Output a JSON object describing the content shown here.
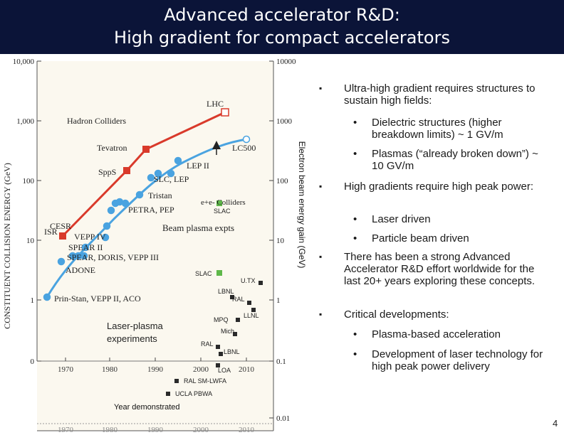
{
  "header": {
    "title_line1": "Advanced accelerator R&D:",
    "title_line2": "High gradient for compact accelerators",
    "background": "#0b1438",
    "text_color": "#ffffff"
  },
  "figure": {
    "left_axis_label": "CONSTITUENT COLLISION ENERGY (GeV)",
    "right_axis_label": "Electron beam energy gain (GeV)",
    "bottom_axis_label": "Year demonstrated",
    "left_ticks": [
      "10,000",
      "1,000",
      "100",
      "10",
      "1",
      "0"
    ],
    "right_ticks": [
      "10000",
      "1000",
      "100",
      "10",
      "1",
      "0.1",
      "0.01"
    ],
    "x_ticks": [
      "1970",
      "1980",
      "1990",
      "2000",
      "2010"
    ],
    "hadron_label": "Hadron Colliders",
    "lepton_label": "e+e- Colliders",
    "beam_plasma_label": "Beam plasma expts",
    "laser_plasma_label": "Laser-plasma\nexperiments",
    "hadron_points": [
      {
        "label": "ISR"
      },
      {
        "label": "SppS"
      },
      {
        "label": "Tevatron"
      },
      {
        "label": "LHC"
      }
    ],
    "lepton_points": [
      {
        "label": "Prin-Stan, VEPP II, ACO"
      },
      {
        "label": "ADONE"
      },
      {
        "label": "SPEAR, DORIS, VEPP III"
      },
      {
        "label": "SPEAR II"
      },
      {
        "label": "VEPP IV"
      },
      {
        "label": "CESR"
      },
      {
        "label": "PETRA, PEP"
      },
      {
        "label": "Tristan"
      },
      {
        "label": "SLC, LEP"
      },
      {
        "label": "LEP II"
      },
      {
        "label": "LC500"
      }
    ],
    "advanced_points": [
      {
        "label": "SLAC"
      },
      {
        "label": "SLAC"
      },
      {
        "label": "U.TX"
      },
      {
        "label": "LBNL"
      },
      {
        "label": "RAL"
      },
      {
        "label": "LLNL"
      },
      {
        "label": "MPQ"
      },
      {
        "label": "Mich"
      },
      {
        "label": "RAL"
      },
      {
        "label": "LBNL"
      },
      {
        "label": "LOA"
      },
      {
        "label": "RAL SM-LWFA"
      },
      {
        "label": "UCLA PBWA"
      }
    ],
    "colors": {
      "hadron": "#d93a2b",
      "lepton": "#4aa3e0",
      "plasma": "#5fb84a",
      "marker_dark": "#2a2a2a"
    }
  },
  "bullets": [
    {
      "text": "Ultra-high gradient requires structures to sustain high fields:",
      "sub": [
        "Dielectric structures (higher breakdown limits) ~ 1 GV/m",
        "Plasmas (“already broken down”) ~ 10 GV/m"
      ]
    },
    {
      "text": "High gradients require high peak power:",
      "sub": [
        "Laser driven",
        "Particle beam driven"
      ]
    },
    {
      "text": "There has been a strong Advanced Accelerator R&D effort worldwide for the last 20+ years exploring these concepts.",
      "sub": []
    },
    {
      "text": "Critical developments:",
      "sub": [
        "Plasma-based acceleration",
        "Development of laser technology for high peak power delivery"
      ]
    }
  ],
  "page_number": "4"
}
